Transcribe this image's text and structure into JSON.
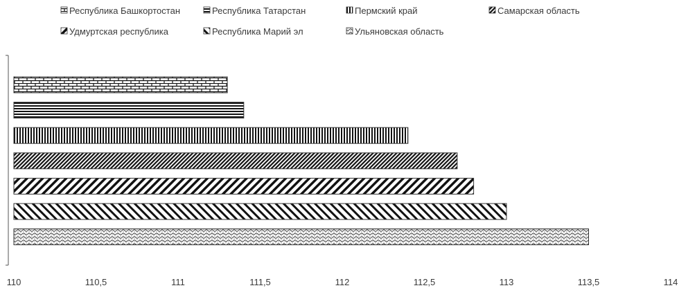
{
  "chart_data": {
    "type": "bar",
    "orientation": "horizontal",
    "title": "",
    "xlabel": "",
    "ylabel": "",
    "xlim": [
      110,
      114
    ],
    "xticks": [
      "110",
      "110,5",
      "111",
      "111,5",
      "112",
      "112,5",
      "113",
      "113,5",
      "114"
    ],
    "grid": false,
    "legend_position": "top",
    "series": [
      {
        "name": "Республика Башкортостан",
        "value": 111.3,
        "pattern": "brick"
      },
      {
        "name": "Республика Татарстан",
        "value": 111.4,
        "pattern": "horizontal-lines"
      },
      {
        "name": "Пермский край",
        "value": 112.4,
        "pattern": "vertical-lines"
      },
      {
        "name": "Самарская область",
        "value": 112.7,
        "pattern": "dense-diagonal"
      },
      {
        "name": "Удмуртская республика",
        "value": 112.8,
        "pattern": "wide-diagonal"
      },
      {
        "name": "Республика Марий эл",
        "value": 113.0,
        "pattern": "back-diagonal"
      },
      {
        "name": "Ульяновская область",
        "value": 113.5,
        "pattern": "dotted-wave"
      }
    ]
  }
}
